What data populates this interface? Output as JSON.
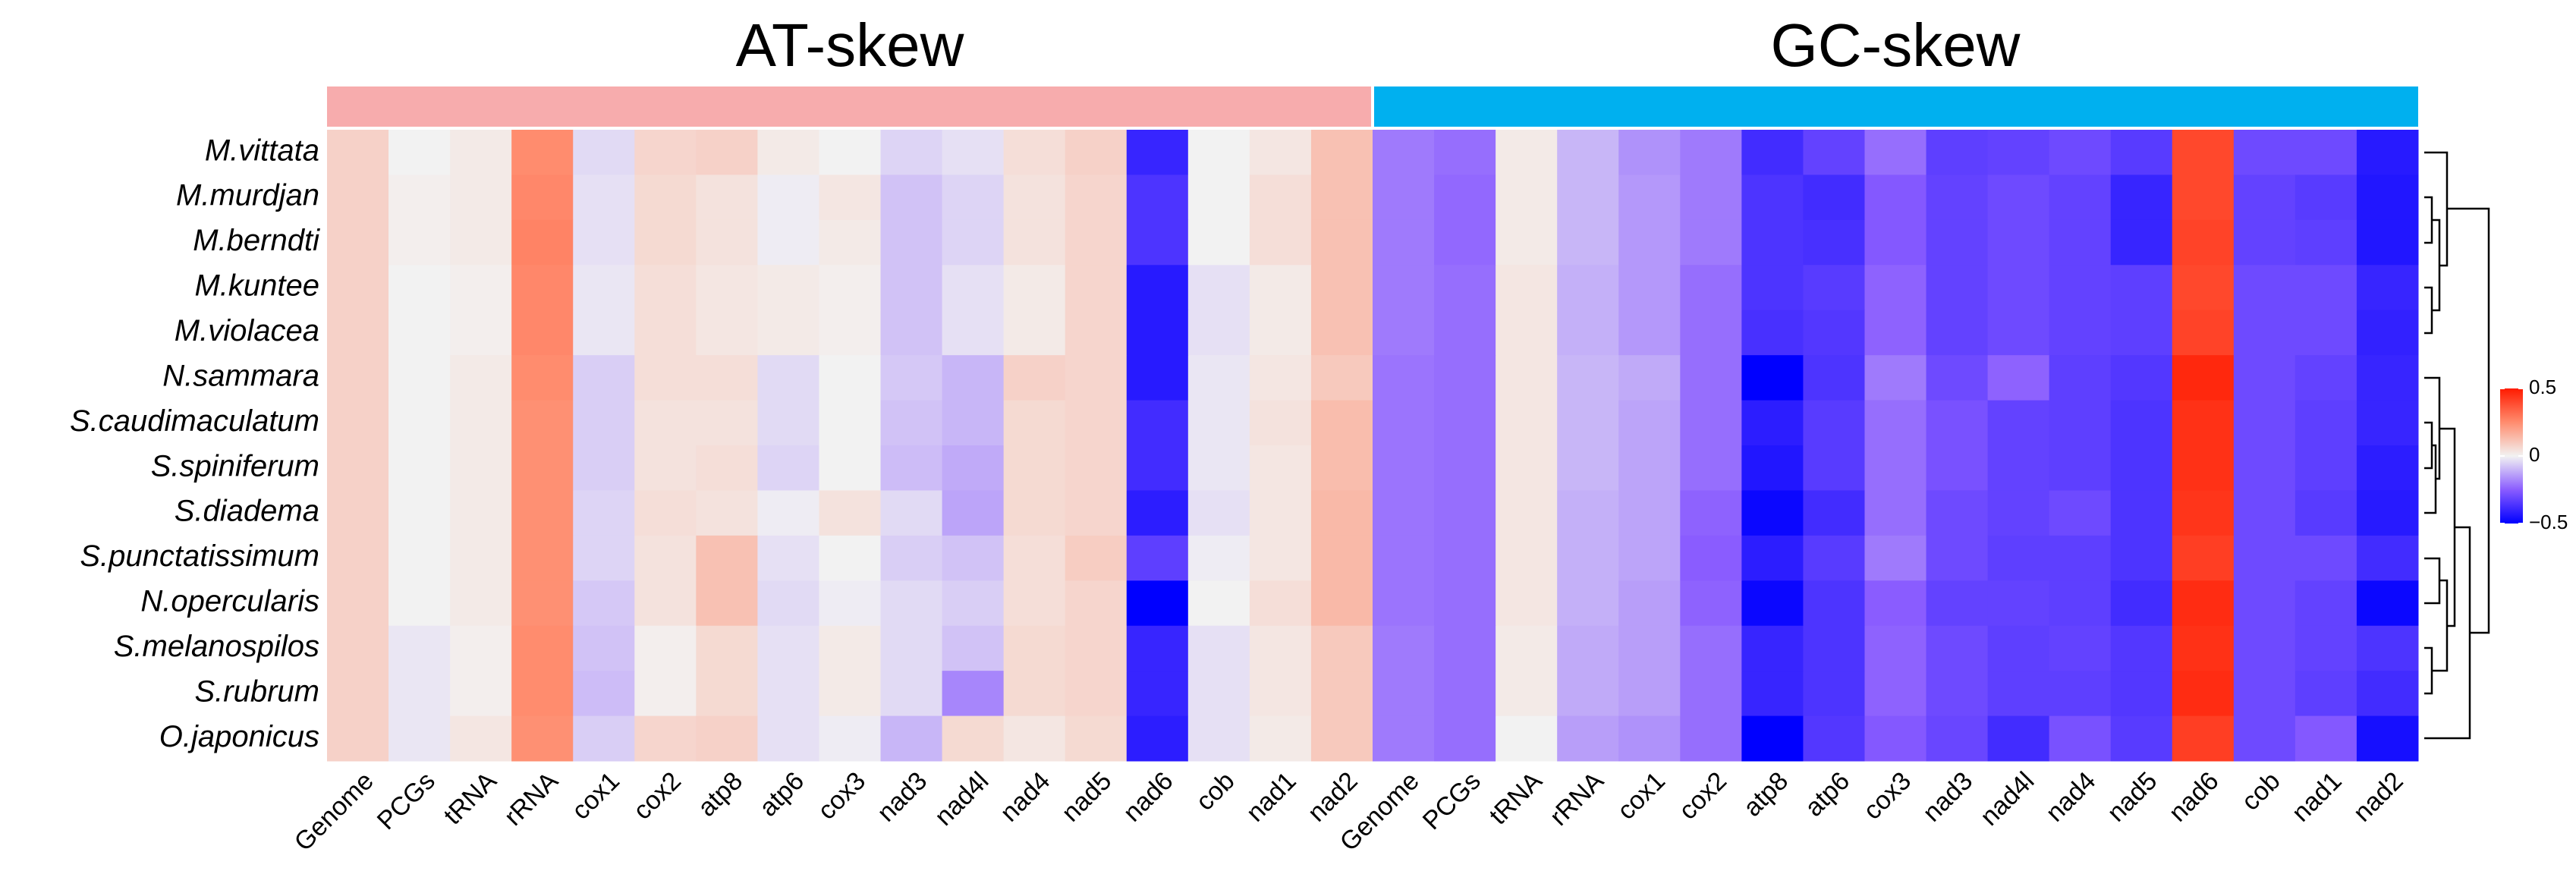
{
  "chart_data": {
    "type": "heatmap",
    "zlim": [
      -0.5,
      0.5
    ],
    "colors": [
      "#0000ff",
      "#8a5cff",
      "#f2f2f2",
      "#ff8c6e",
      "#ff1a00"
    ],
    "colorbar_ticks": [
      {
        "value": -0.5,
        "label": "−0.5"
      },
      0,
      0.5
    ],
    "y": [
      "M.vittata",
      "M.murdjan",
      "M.berndti",
      "M.kuntee",
      "M.violacea",
      "N.sammara",
      "S.caudimaculatum",
      "S.spiniferum",
      "S.diadema",
      "S.punctatissimum",
      "N.opercularis",
      "S.melanospilos",
      "S.rubrum",
      "O.japonicus"
    ],
    "groups": [
      {
        "name": "AT-skew",
        "color": "#f7acad",
        "columns": [
          "Genome",
          "PCGs",
          "tRNA",
          "rRNA",
          "cox1",
          "cox2",
          "atp8",
          "atp6",
          "cox3",
          "nad3",
          "nad4l",
          "nad4",
          "nad5",
          "nad6",
          "cob",
          "nad1",
          "nad2"
        ],
        "values": [
          [
            0.08,
            0.0,
            0.02,
            0.25,
            -0.04,
            0.07,
            0.08,
            0.02,
            0.0,
            -0.05,
            -0.03,
            0.05,
            0.08,
            -0.4,
            0.0,
            0.03,
            0.12
          ],
          [
            0.08,
            0.01,
            0.02,
            0.26,
            -0.03,
            0.06,
            0.04,
            -0.01,
            0.03,
            -0.08,
            -0.05,
            0.04,
            0.07,
            -0.36,
            0.0,
            0.05,
            0.12
          ],
          [
            0.08,
            0.01,
            0.02,
            0.27,
            -0.03,
            0.06,
            0.04,
            -0.01,
            0.02,
            -0.08,
            -0.05,
            0.04,
            0.07,
            -0.36,
            0.0,
            0.05,
            0.12
          ],
          [
            0.08,
            0.0,
            0.01,
            0.26,
            -0.02,
            0.05,
            0.03,
            0.02,
            0.01,
            -0.08,
            -0.03,
            0.02,
            0.07,
            -0.43,
            -0.03,
            0.02,
            0.12
          ],
          [
            0.08,
            0.0,
            0.01,
            0.26,
            -0.02,
            0.05,
            0.03,
            0.02,
            0.01,
            -0.08,
            -0.03,
            0.02,
            0.07,
            -0.43,
            -0.03,
            0.02,
            0.12
          ],
          [
            0.08,
            0.0,
            0.02,
            0.25,
            -0.06,
            0.05,
            0.05,
            -0.04,
            0.0,
            -0.07,
            -0.1,
            0.08,
            0.07,
            -0.43,
            -0.02,
            0.03,
            0.1
          ],
          [
            0.08,
            0.0,
            0.02,
            0.24,
            -0.06,
            0.04,
            0.04,
            -0.04,
            0.0,
            -0.08,
            -0.1,
            0.06,
            0.07,
            -0.38,
            -0.02,
            0.04,
            0.13
          ],
          [
            0.08,
            0.0,
            0.02,
            0.24,
            -0.06,
            0.04,
            0.05,
            -0.05,
            0.0,
            -0.09,
            -0.12,
            0.06,
            0.07,
            -0.38,
            -0.02,
            0.03,
            0.13
          ],
          [
            0.08,
            0.0,
            0.02,
            0.24,
            -0.05,
            0.05,
            0.04,
            -0.01,
            0.04,
            -0.04,
            -0.13,
            0.06,
            0.07,
            -0.42,
            -0.03,
            0.03,
            0.14
          ],
          [
            0.08,
            0.0,
            0.02,
            0.24,
            -0.05,
            0.04,
            0.12,
            -0.03,
            0.0,
            -0.06,
            -0.08,
            0.05,
            0.09,
            -0.33,
            -0.01,
            0.03,
            0.14
          ],
          [
            0.08,
            0.0,
            0.02,
            0.24,
            -0.07,
            0.04,
            0.12,
            -0.04,
            -0.01,
            -0.04,
            -0.06,
            0.05,
            0.07,
            -0.5,
            0.0,
            0.05,
            0.14
          ],
          [
            0.08,
            -0.02,
            0.01,
            0.25,
            -0.08,
            0.01,
            0.06,
            -0.03,
            0.02,
            -0.04,
            -0.08,
            0.06,
            0.07,
            -0.4,
            -0.03,
            0.03,
            0.1
          ],
          [
            0.08,
            -0.02,
            0.01,
            0.25,
            -0.09,
            0.01,
            0.06,
            -0.03,
            0.02,
            -0.04,
            -0.18,
            0.06,
            0.07,
            -0.4,
            -0.03,
            0.03,
            0.1
          ],
          [
            0.08,
            -0.02,
            0.03,
            0.24,
            -0.06,
            0.07,
            0.08,
            -0.03,
            -0.01,
            -0.1,
            0.06,
            0.03,
            0.06,
            -0.42,
            -0.03,
            0.02,
            0.1
          ]
        ]
      },
      {
        "name": "GC-skew",
        "color": "#00b0ef",
        "columns": [
          "Genome",
          "PCGs",
          "tRNA",
          "rRNA",
          "cox1",
          "cox2",
          "atp8",
          "atp6",
          "cox3",
          "nad3",
          "nad4l",
          "nad4",
          "nad5",
          "nad6",
          "cob",
          "nad1",
          "nad2"
        ],
        "values": [
          [
            -0.2,
            -0.22,
            0.02,
            -0.1,
            -0.16,
            -0.2,
            -0.38,
            -0.32,
            -0.22,
            -0.33,
            -0.32,
            -0.3,
            -0.34,
            0.4,
            -0.3,
            -0.3,
            -0.43
          ],
          [
            -0.2,
            -0.23,
            0.02,
            -0.1,
            -0.15,
            -0.2,
            -0.36,
            -0.38,
            -0.26,
            -0.32,
            -0.3,
            -0.32,
            -0.4,
            0.4,
            -0.32,
            -0.34,
            -0.44
          ],
          [
            -0.2,
            -0.23,
            0.02,
            -0.1,
            -0.15,
            -0.2,
            -0.36,
            -0.37,
            -0.26,
            -0.32,
            -0.3,
            -0.32,
            -0.4,
            0.41,
            -0.32,
            -0.33,
            -0.44
          ],
          [
            -0.2,
            -0.22,
            0.03,
            -0.11,
            -0.15,
            -0.22,
            -0.36,
            -0.34,
            -0.24,
            -0.32,
            -0.3,
            -0.32,
            -0.33,
            0.4,
            -0.3,
            -0.3,
            -0.4
          ],
          [
            -0.2,
            -0.22,
            0.03,
            -0.11,
            -0.15,
            -0.22,
            -0.37,
            -0.35,
            -0.24,
            -0.32,
            -0.3,
            -0.32,
            -0.33,
            0.41,
            -0.3,
            -0.3,
            -0.41
          ],
          [
            -0.21,
            -0.22,
            0.03,
            -0.1,
            -0.12,
            -0.22,
            -0.5,
            -0.36,
            -0.2,
            -0.3,
            -0.24,
            -0.33,
            -0.35,
            0.47,
            -0.3,
            -0.32,
            -0.4
          ],
          [
            -0.21,
            -0.22,
            0.03,
            -0.1,
            -0.13,
            -0.22,
            -0.42,
            -0.34,
            -0.22,
            -0.28,
            -0.32,
            -0.33,
            -0.36,
            0.45,
            -0.3,
            -0.33,
            -0.4
          ],
          [
            -0.21,
            -0.22,
            0.03,
            -0.1,
            -0.13,
            -0.22,
            -0.44,
            -0.34,
            -0.22,
            -0.28,
            -0.32,
            -0.33,
            -0.36,
            0.45,
            -0.3,
            -0.33,
            -0.42
          ],
          [
            -0.21,
            -0.22,
            0.03,
            -0.11,
            -0.13,
            -0.24,
            -0.48,
            -0.38,
            -0.22,
            -0.3,
            -0.32,
            -0.3,
            -0.36,
            0.44,
            -0.3,
            -0.34,
            -0.43
          ],
          [
            -0.21,
            -0.22,
            0.03,
            -0.11,
            -0.13,
            -0.25,
            -0.42,
            -0.34,
            -0.2,
            -0.3,
            -0.33,
            -0.33,
            -0.36,
            0.42,
            -0.3,
            -0.3,
            -0.38
          ],
          [
            -0.21,
            -0.22,
            0.03,
            -0.11,
            -0.14,
            -0.24,
            -0.48,
            -0.36,
            -0.25,
            -0.32,
            -0.32,
            -0.33,
            -0.38,
            0.46,
            -0.3,
            -0.32,
            -0.48
          ],
          [
            -0.2,
            -0.22,
            0.02,
            -0.12,
            -0.14,
            -0.22,
            -0.4,
            -0.36,
            -0.24,
            -0.3,
            -0.33,
            -0.32,
            -0.35,
            0.45,
            -0.3,
            -0.32,
            -0.36
          ],
          [
            -0.2,
            -0.22,
            0.02,
            -0.12,
            -0.14,
            -0.22,
            -0.4,
            -0.36,
            -0.24,
            -0.3,
            -0.33,
            -0.33,
            -0.35,
            0.46,
            -0.3,
            -0.33,
            -0.38
          ],
          [
            -0.2,
            -0.22,
            0.0,
            -0.14,
            -0.16,
            -0.22,
            -0.5,
            -0.35,
            -0.26,
            -0.31,
            -0.38,
            -0.28,
            -0.34,
            0.42,
            -0.3,
            -0.26,
            -0.46
          ]
        ]
      }
    ]
  }
}
